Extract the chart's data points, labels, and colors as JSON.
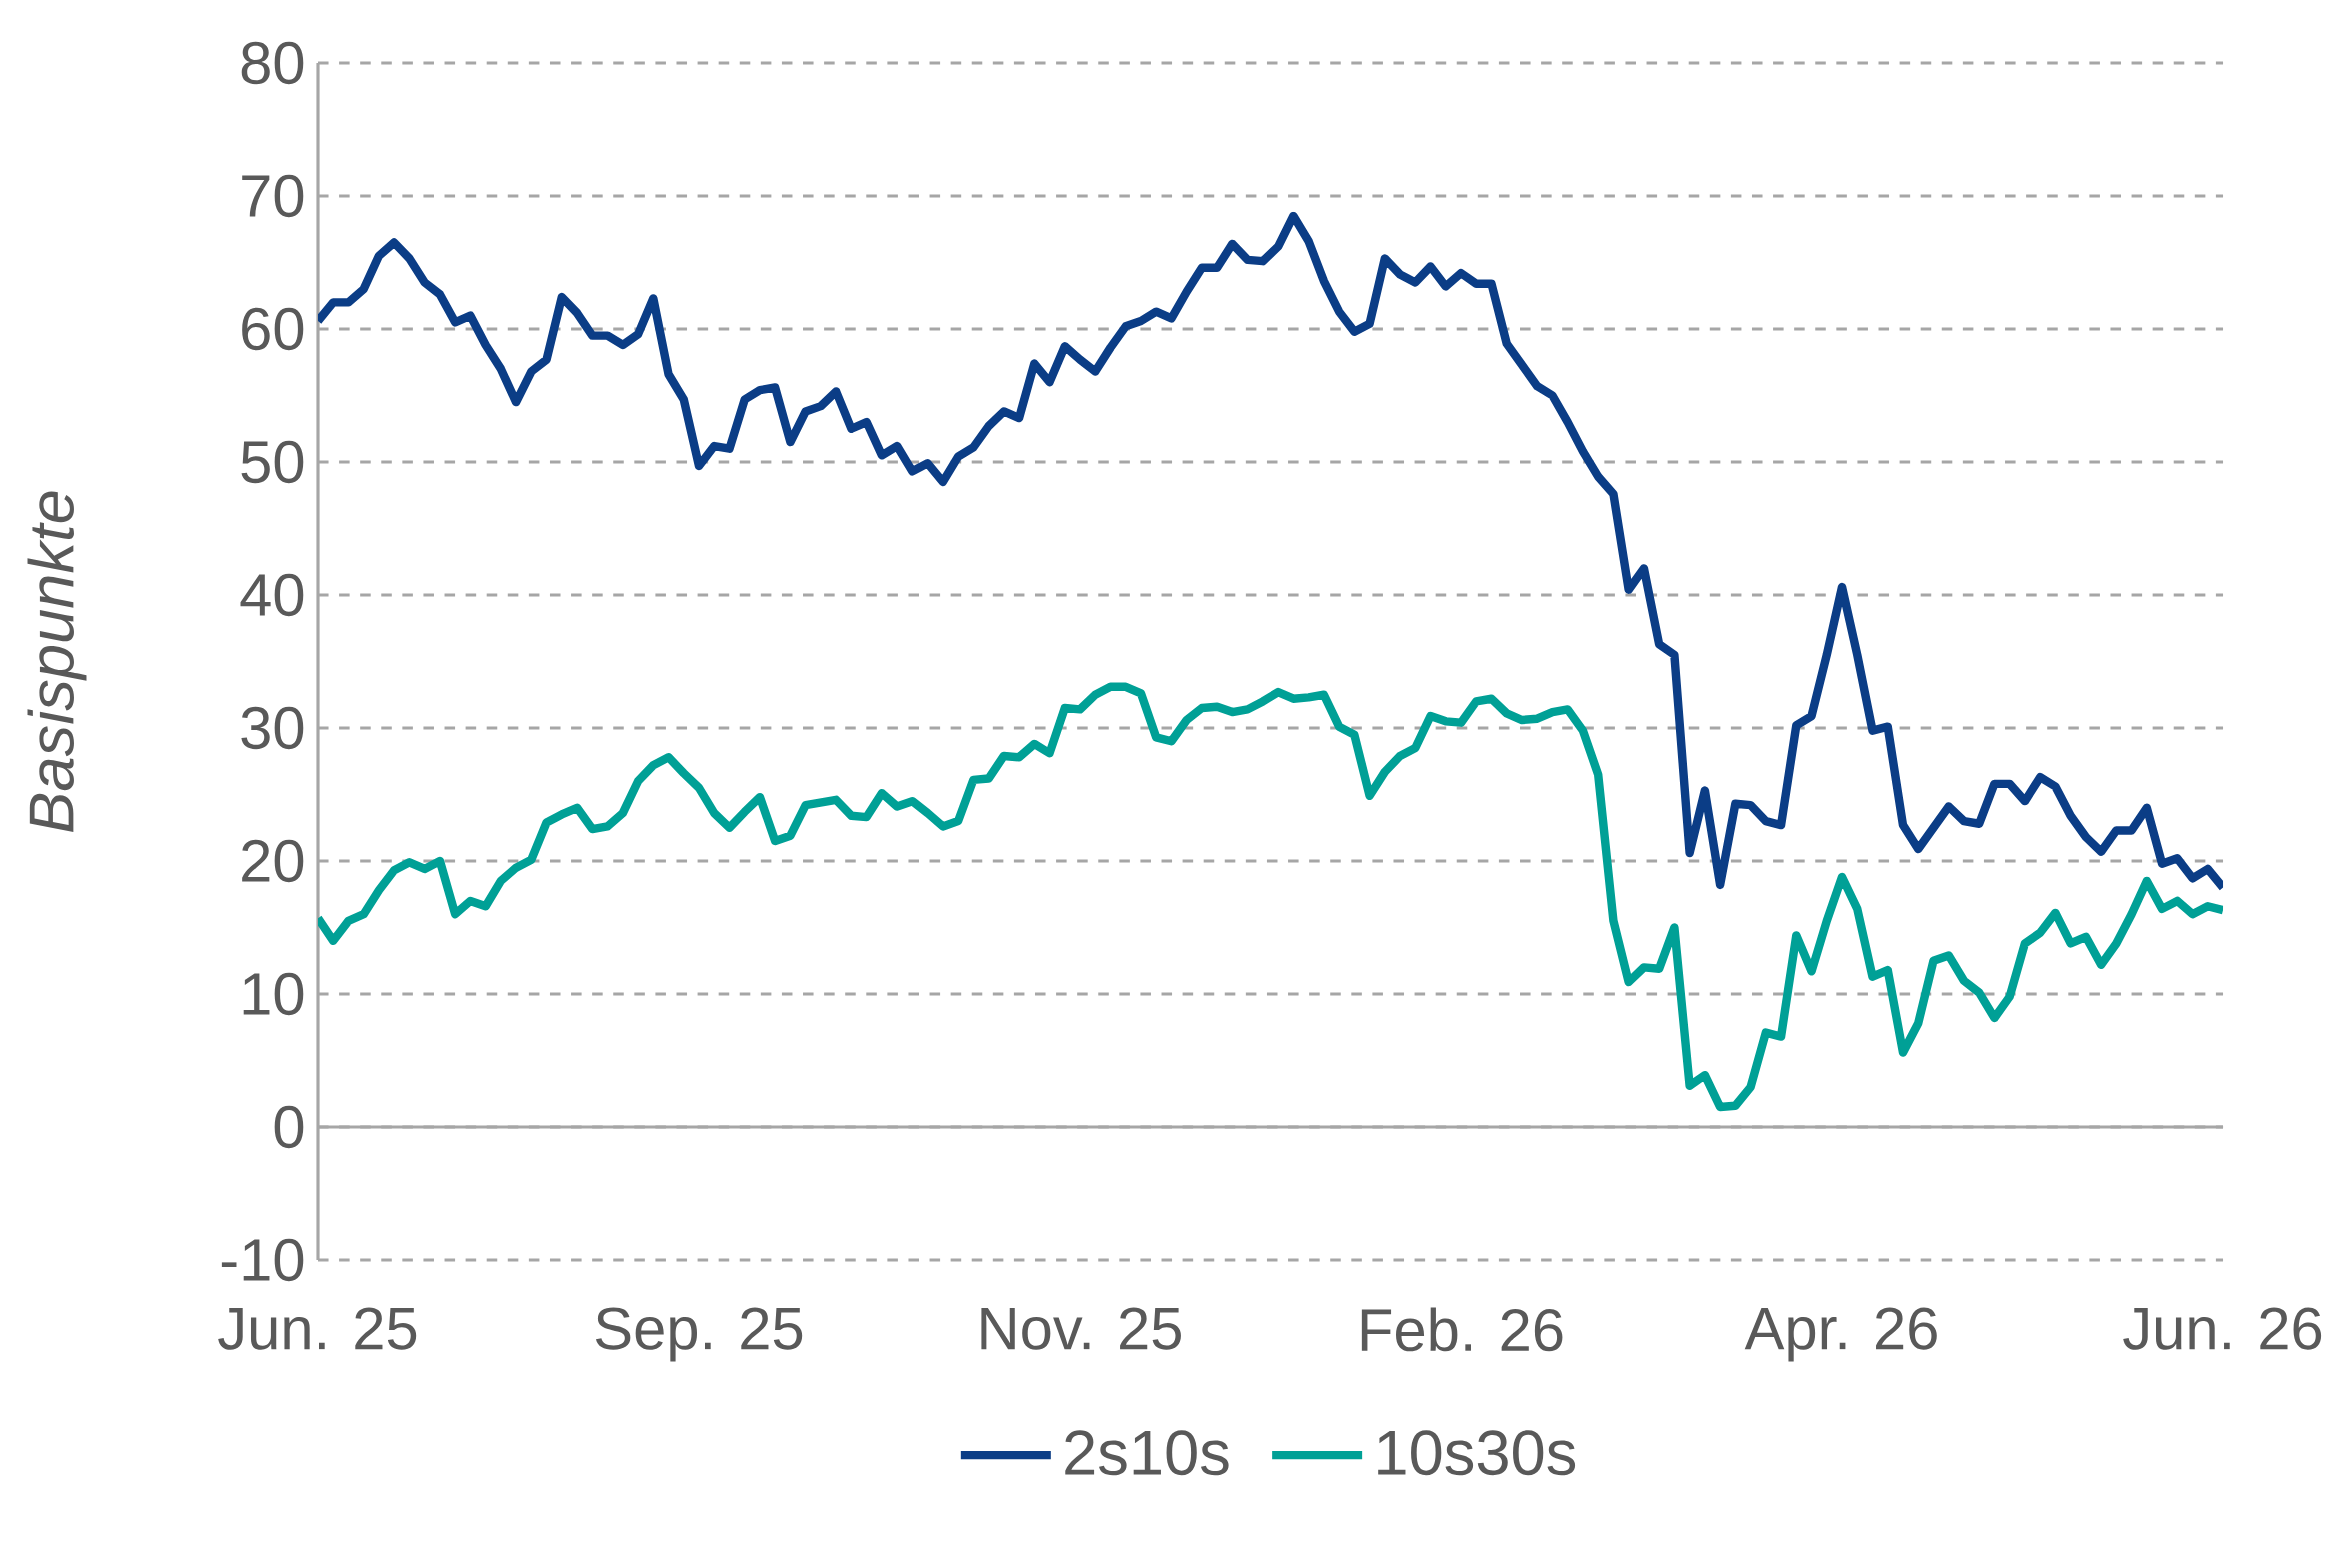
{
  "chart_data": {
    "type": "line",
    "ylabel": "Basispunkte",
    "categories": [
      "Jun. 25",
      null,
      null,
      null,
      null,
      null,
      null,
      null,
      null,
      null,
      null,
      null,
      null,
      null,
      null,
      null,
      null,
      null,
      null,
      null,
      null,
      null,
      null,
      null,
      null,
      "Sep. 25",
      null,
      null,
      null,
      null,
      null,
      null,
      null,
      null,
      null,
      null,
      null,
      null,
      null,
      null,
      null,
      null,
      null,
      null,
      null,
      null,
      null,
      null,
      null,
      null,
      "Nov. 25",
      null,
      null,
      null,
      null,
      null,
      null,
      null,
      null,
      null,
      null,
      null,
      null,
      null,
      null,
      null,
      null,
      null,
      null,
      null,
      null,
      null,
      null,
      null,
      null,
      "Feb. 26",
      null,
      null,
      null,
      null,
      null,
      null,
      null,
      null,
      null,
      null,
      null,
      null,
      null,
      null,
      null,
      null,
      null,
      null,
      null,
      null,
      null,
      null,
      null,
      null,
      "Apr. 26",
      null,
      null,
      null,
      null,
      null,
      null,
      null,
      null,
      null,
      null,
      null,
      null,
      null,
      null,
      null,
      null,
      null,
      null,
      null,
      null,
      null,
      null,
      null,
      null,
      "Jun. 26"
    ],
    "ylim": [
      -10,
      80
    ],
    "yticks": [
      -10,
      0,
      10,
      20,
      30,
      40,
      50,
      60,
      70,
      80
    ],
    "grid": "y",
    "legend": "bottom",
    "marker": "none",
    "line_style": "solid",
    "series": [
      {
        "name": "2s10s",
        "color": "#0b3d86",
        "values": [
          60.6,
          62,
          62,
          63,
          65.5,
          66.5,
          65.3,
          63.5,
          62.6,
          60.5,
          61,
          58.8,
          57,
          54.5,
          56.8,
          57.7,
          62.4,
          61.2,
          59.5,
          59.5,
          58.8,
          59.6,
          62.3,
          56.6,
          54.7,
          49.7,
          51.2,
          51,
          54.7,
          55.4,
          55.6,
          51.5,
          53.8,
          54.2,
          55.3,
          52.5,
          53,
          50.5,
          51.2,
          49.3,
          49.9,
          48.5,
          50.4,
          51.1,
          52.7,
          53.8,
          53.3,
          57.4,
          56,
          58.7,
          57.7,
          56.8,
          58.6,
          60.2,
          60.6,
          61.3,
          60.8,
          62.8,
          64.6,
          64.6,
          66.4,
          65.2,
          65.1,
          66.2,
          68.5,
          66.6,
          63.6,
          61.3,
          59.8,
          60.4,
          65.3,
          64.1,
          63.5,
          64.7,
          63.2,
          64.2,
          63.4,
          63.4,
          58.9,
          57.3,
          55.7,
          55,
          53,
          50.8,
          48.9,
          47.6,
          40.4,
          42,
          36.3,
          35.5,
          20.6,
          25.3,
          18.2,
          24.3,
          24.2,
          23,
          22.7,
          30.2,
          30.9,
          35.5,
          40.6,
          35.5,
          29.8,
          30.1,
          22.7,
          20.9,
          22.5,
          24.1,
          23,
          22.8,
          25.8,
          25.8,
          24.5,
          26.3,
          25.6,
          23.4,
          21.8,
          20.7,
          22.3,
          22.3,
          24,
          19.8,
          20.2,
          18.7,
          19.4,
          18
        ]
      },
      {
        "name": "10s30s",
        "color": "#00a096",
        "values": [
          15.7,
          14,
          15.5,
          16,
          17.8,
          19.3,
          19.9,
          19.4,
          20,
          16,
          17,
          16.6,
          18.5,
          19.5,
          20.1,
          22.9,
          23.5,
          24,
          22.4,
          22.6,
          23.6,
          26,
          27.2,
          27.8,
          26.6,
          25.5,
          23.6,
          22.5,
          23.7,
          24.8,
          21.5,
          21.9,
          24.2,
          24.4,
          24.6,
          23.4,
          23.3,
          25.1,
          24.1,
          24.5,
          23.6,
          22.6,
          23,
          26.1,
          26.2,
          27.9,
          27.8,
          28.8,
          28.1,
          31.5,
          31.4,
          32.5,
          33.1,
          33.1,
          32.6,
          29.3,
          29,
          30.6,
          31.5,
          31.6,
          31.2,
          31.4,
          32,
          32.7,
          32.2,
          32.3,
          32.5,
          30.1,
          29.5,
          24.9,
          26.7,
          27.9,
          28.5,
          30.9,
          30.5,
          30.4,
          32,
          32.2,
          31.1,
          30.6,
          30.7,
          31.2,
          31.4,
          29.8,
          26.5,
          15.5,
          10.9,
          12,
          11.9,
          15,
          3.1,
          3.9,
          1.5,
          1.6,
          3.0,
          7.1,
          6.8,
          14.4,
          11.7,
          15.5,
          18.8,
          16.4,
          11.3,
          11.8,
          5.6,
          7.8,
          12.5,
          12.9,
          11,
          10.1,
          8.2,
          9.8,
          13.8,
          14.6,
          16.1,
          13.8,
          14.3,
          12.2,
          13.8,
          16,
          18.5,
          16.4,
          17,
          16,
          16.6,
          16.3
        ]
      }
    ]
  }
}
